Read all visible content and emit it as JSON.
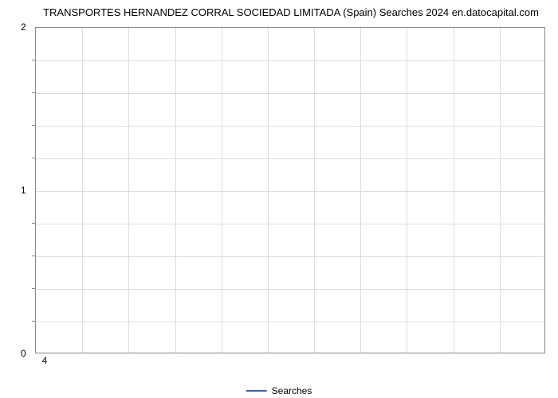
{
  "chart": {
    "type": "line",
    "title": "TRANSPORTES HERNANDEZ CORRAL SOCIEDAD LIMITADA (Spain) Searches 2024 en.datocapital.com",
    "title_fontsize": 13,
    "title_color": "#000000",
    "background_color": "#ffffff",
    "plot_border_color": "#888888",
    "grid_color": "#dddddd",
    "y_axis": {
      "min": 0,
      "max": 2,
      "major_ticks": [
        0,
        1,
        2
      ],
      "minor_tick_count": 4,
      "label_fontsize": 12
    },
    "x_axis": {
      "ticks": [
        4
      ],
      "label_fontsize": 12
    },
    "grid_vertical_count": 11,
    "grid_horizontal_count": 10,
    "series": [
      {
        "name": "Searches",
        "color": "#3b5fbf",
        "line_width": 2,
        "data": []
      }
    ],
    "legend": {
      "position": "bottom-center",
      "label": "Searches",
      "fontsize": 12,
      "line_color": "#3b5fbf"
    }
  }
}
